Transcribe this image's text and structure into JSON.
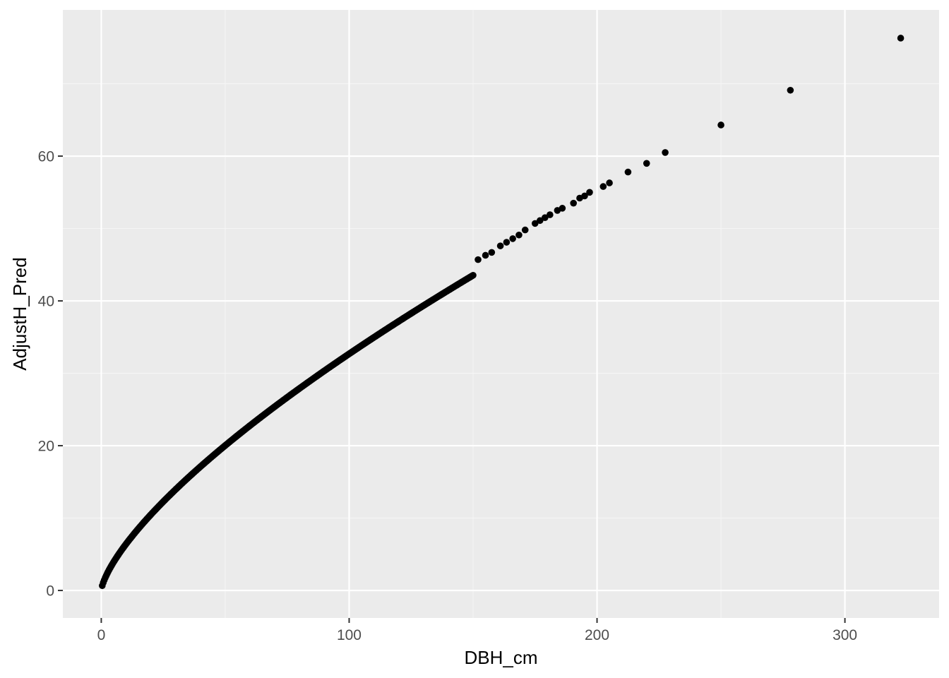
{
  "chart_data": {
    "type": "scatter",
    "title": "",
    "xlabel": "DBH_cm",
    "ylabel": "AdjustH_Pred",
    "xlim": [
      -15.5,
      338
    ],
    "ylim": [
      -3.8,
      80.2
    ],
    "x_ticks": [
      0,
      100,
      200,
      300
    ],
    "y_ticks": [
      0,
      20,
      40,
      60
    ],
    "x_tick_labels": [
      "0",
      "100",
      "200",
      "300"
    ],
    "y_tick_labels": [
      "0",
      "20",
      "40",
      "60"
    ],
    "grid": true,
    "legend": "none",
    "colors": {
      "panel_background": "#ebebeb",
      "grid_major": "#ffffff",
      "grid_minor": "#f5f5f5",
      "point": "#000000",
      "tick_label": "#4d4d4d",
      "tick_mark": "#333333"
    },
    "curve_model": {
      "a": 1.26,
      "b": 0.707
    },
    "dense_range": {
      "x_start": 0.4,
      "x_end": 150,
      "step": 0.4
    },
    "series": [
      {
        "points": [
          {
            "x": 152.0,
            "y": 45.7
          },
          {
            "x": 155.0,
            "y": 46.3
          },
          {
            "x": 157.5,
            "y": 46.7
          },
          {
            "x": 161.0,
            "y": 47.6
          },
          {
            "x": 163.5,
            "y": 48.1
          },
          {
            "x": 166.0,
            "y": 48.6
          },
          {
            "x": 168.5,
            "y": 49.1
          },
          {
            "x": 171.0,
            "y": 49.8
          },
          {
            "x": 175.0,
            "y": 50.7
          },
          {
            "x": 177.0,
            "y": 51.1
          },
          {
            "x": 179.0,
            "y": 51.5
          },
          {
            "x": 181.0,
            "y": 51.9
          },
          {
            "x": 184.0,
            "y": 52.5
          },
          {
            "x": 186.0,
            "y": 52.8
          },
          {
            "x": 190.5,
            "y": 53.5
          },
          {
            "x": 193.0,
            "y": 54.2
          },
          {
            "x": 195.0,
            "y": 54.5
          },
          {
            "x": 197.0,
            "y": 55.0
          },
          {
            "x": 202.5,
            "y": 55.8
          },
          {
            "x": 205.0,
            "y": 56.3
          },
          {
            "x": 212.5,
            "y": 57.8
          },
          {
            "x": 220.0,
            "y": 59.0
          },
          {
            "x": 227.5,
            "y": 60.5
          },
          {
            "x": 250.0,
            "y": 64.3
          },
          {
            "x": 278.0,
            "y": 69.1
          },
          {
            "x": 322.5,
            "y": 76.3
          }
        ]
      }
    ]
  }
}
